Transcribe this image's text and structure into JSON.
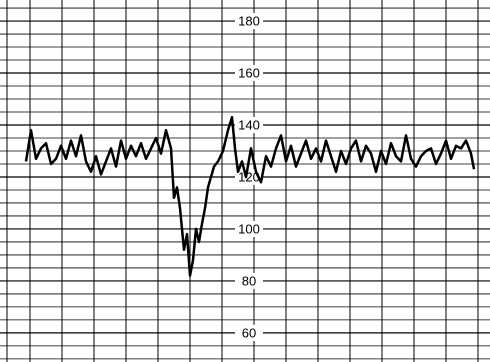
{
  "chart_data": {
    "type": "line",
    "x": [
      26,
      31,
      36,
      41,
      46,
      51,
      56,
      61,
      66,
      71,
      76,
      81,
      86,
      91,
      96,
      101,
      106,
      111,
      116,
      121,
      126,
      131,
      136,
      141,
      146,
      151,
      156,
      161,
      166,
      171,
      174,
      177,
      180,
      184,
      187,
      190,
      193,
      196,
      199,
      202,
      205,
      208,
      211,
      214,
      218,
      223,
      228,
      232,
      235,
      238,
      242,
      246,
      251,
      256,
      261,
      266,
      271,
      276,
      281,
      286,
      291,
      296,
      301,
      306,
      311,
      316,
      321,
      326,
      331,
      336,
      341,
      346,
      351,
      356,
      361,
      366,
      371,
      376,
      381,
      386,
      391,
      396,
      401,
      406,
      411,
      416,
      421,
      426,
      431,
      436,
      441,
      446,
      451,
      456,
      461,
      466,
      471,
      474
    ],
    "values": [
      126,
      138,
      127,
      131,
      133,
      125,
      127,
      132,
      127,
      134,
      128,
      136,
      126,
      122,
      128,
      121,
      126,
      131,
      124,
      134,
      127,
      132,
      128,
      133,
      127,
      131,
      135,
      129,
      138,
      131,
      112,
      116,
      108,
      92,
      98,
      82,
      88,
      100,
      95,
      102,
      108,
      116,
      120,
      124,
      126,
      130,
      138,
      143,
      131,
      122,
      126,
      120,
      131,
      122,
      118,
      128,
      124,
      131,
      136,
      126,
      132,
      124,
      129,
      134,
      127,
      131,
      126,
      134,
      128,
      122,
      130,
      125,
      131,
      134,
      126,
      132,
      129,
      122,
      130,
      125,
      133,
      128,
      126,
      136,
      127,
      124,
      128,
      130,
      131,
      125,
      129,
      134,
      127,
      132,
      131,
      134,
      129,
      123
    ],
    "color": "#000000",
    "xlim": [
      0,
      490
    ],
    "ylim": [
      48.8,
      188.1
    ],
    "yticks": [
      60,
      80,
      100,
      120,
      140,
      160,
      180
    ],
    "minor_yticks": [
      50,
      55,
      65,
      70,
      75,
      85,
      90,
      95,
      105,
      110,
      115,
      125,
      130,
      135,
      145,
      150,
      155,
      165,
      170,
      175,
      185
    ],
    "xgrid": [
      7,
      30,
      62,
      94,
      126,
      158,
      190,
      222,
      254,
      286,
      318,
      350,
      382,
      414,
      446,
      478
    ],
    "grid": true
  }
}
